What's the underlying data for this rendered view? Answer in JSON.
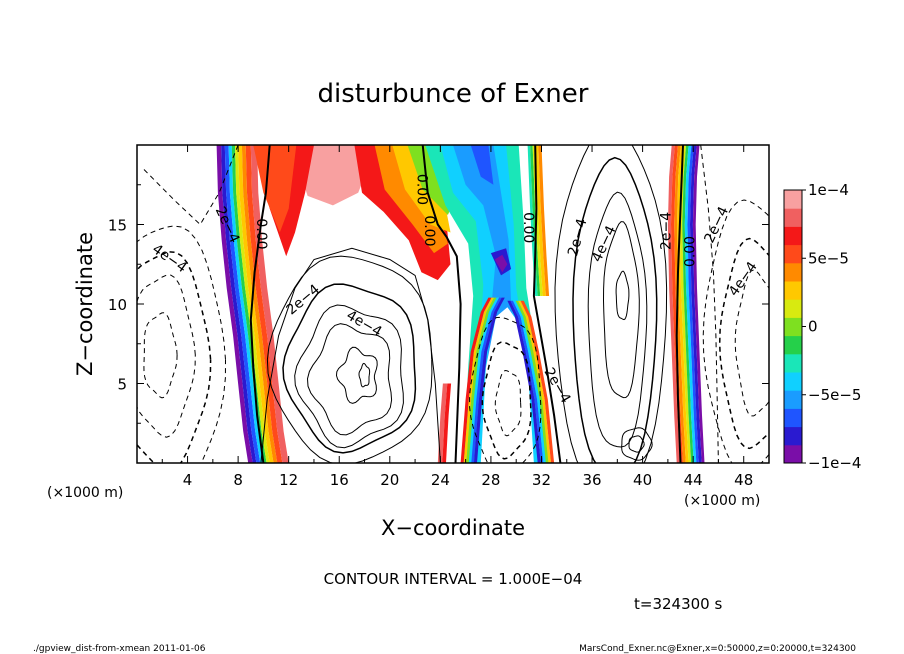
{
  "chart_data": {
    "type": "heatmap",
    "title": "disturbunce of Exner",
    "xlabel": "X−coordinate",
    "ylabel": "Z−coordinate",
    "x_unit": "(×1000 m)",
    "y_unit": "(×1000 m)",
    "xlim": [
      0,
      50
    ],
    "ylim": [
      0,
      20
    ],
    "x_ticks": [
      4,
      8,
      12,
      16,
      20,
      24,
      28,
      32,
      36,
      40,
      44,
      48
    ],
    "y_ticks": [
      5,
      10,
      15
    ],
    "colorbar": {
      "min": -0.0001,
      "max": 0.0001,
      "labels": [
        {
          "value": 0.0001,
          "text": "1e−4"
        },
        {
          "value": 5e-05,
          "text": "5e−5"
        },
        {
          "value": 0,
          "text": "0"
        },
        {
          "value": -5e-05,
          "text": "−5e−5"
        },
        {
          "value": -0.0001,
          "text": "−1e−4"
        }
      ],
      "colors": [
        "#7a0ea8",
        "#2a1ad0",
        "#1f55ff",
        "#1a9cff",
        "#10d0ff",
        "#1ae6b8",
        "#25d04a",
        "#7ee020",
        "#d8ea10",
        "#ffc800",
        "#ff8a00",
        "#ff4a1a",
        "#f41818",
        "#f06060",
        "#f8a0a0"
      ]
    },
    "contour_interval_text": "CONTOUR INTERVAL = 1.000E−04",
    "contour_labels": [
      {
        "text": "2e−4",
        "x": 7.2,
        "z": 15.0,
        "angle": 65
      },
      {
        "text": "4e−4",
        "x": 2.6,
        "z": 12.9,
        "angle": 35
      },
      {
        "text": "0.00",
        "x": 9.9,
        "z": 14.4,
        "angle": 90
      },
      {
        "text": "2e−4",
        "x": 13.1,
        "z": 10.3,
        "angle": -40
      },
      {
        "text": "4e−4",
        "x": 18.0,
        "z": 8.8,
        "angle": 30
      },
      {
        "text": "0.00",
        "x": 22.6,
        "z": 17.2,
        "angle": 90
      },
      {
        "text": "0.00",
        "x": 23.2,
        "z": 14.6,
        "angle": 90
      },
      {
        "text": "0.00",
        "x": 31.0,
        "z": 14.8,
        "angle": 90
      },
      {
        "text": "2e−4",
        "x": 34.8,
        "z": 14.2,
        "angle": -75
      },
      {
        "text": "4e−4",
        "x": 36.9,
        "z": 13.8,
        "angle": -65
      },
      {
        "text": "2e−4",
        "x": 33.3,
        "z": 4.9,
        "angle": 60
      },
      {
        "text": "2e−4",
        "x": 41.8,
        "z": 14.6,
        "angle": -90
      },
      {
        "text": "0.00",
        "x": 43.7,
        "z": 13.3,
        "angle": -90
      },
      {
        "text": "2e−4",
        "x": 45.8,
        "z": 15.0,
        "angle": -65
      },
      {
        "text": "4e−4",
        "x": 47.9,
        "z": 11.6,
        "angle": -55
      }
    ],
    "time_text": "t=324300 s",
    "footer_left": "./gpview_dist-from-xmean  2011-01-06",
    "footer_right": "MarsCond_Exner.nc@Exner,x=0:50000,z=0:20000,t=324300"
  }
}
